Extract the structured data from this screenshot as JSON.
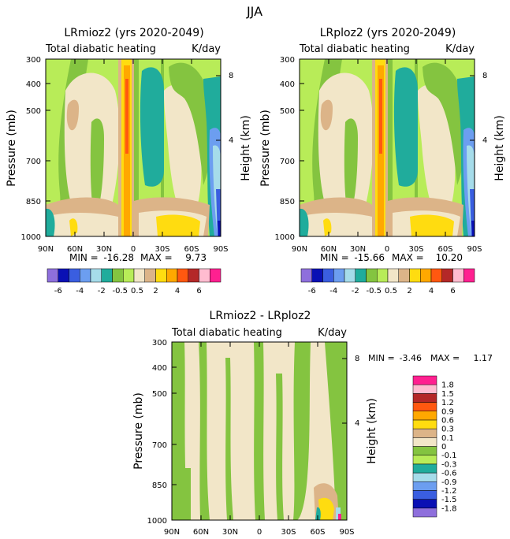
{
  "figure": {
    "title": "JJA"
  },
  "chart_data": [
    {
      "type": "heatmap",
      "title": "LRmioz2 (yrs 2020-2049)",
      "subtitle_left": "Total diabatic heating",
      "subtitle_right": "K/day",
      "ylabel": "Pressure (mb)",
      "ylabel_right": "Height (km)",
      "x_ticks": [
        "90N",
        "60N",
        "30N",
        "0",
        "30S",
        "60S",
        "90S"
      ],
      "y_ticks": [
        "300",
        "400",
        "500",
        "700",
        "850",
        "1000"
      ],
      "y_right_ticks": [
        "8",
        "4"
      ],
      "stats": {
        "min_label": "MIN =",
        "min": "-16.28",
        "max_label": "MAX =",
        "max": "9.73"
      }
    },
    {
      "type": "heatmap",
      "title": "LRploz2 (yrs 2020-2049)",
      "subtitle_left": "Total diabatic heating",
      "subtitle_right": "K/day",
      "ylabel": "Pressure (mb)",
      "ylabel_right": "Height (km)",
      "x_ticks": [
        "90N",
        "60N",
        "30N",
        "0",
        "30S",
        "60S",
        "90S"
      ],
      "y_ticks": [
        "300",
        "400",
        "500",
        "700",
        "850",
        "1000"
      ],
      "y_right_ticks": [
        "8",
        "4"
      ],
      "stats": {
        "min_label": "MIN =",
        "min": "-15.66",
        "max_label": "MAX =",
        "max": "10.20"
      }
    },
    {
      "type": "heatmap",
      "title": "LRmioz2 - LRploz2",
      "subtitle_left": "Total diabatic heating",
      "subtitle_right": "K/day",
      "ylabel": "Pressure (mb)",
      "ylabel_right": "Height (km)",
      "x_ticks": [
        "90N",
        "60N",
        "30N",
        "0",
        "30S",
        "60S",
        "90S"
      ],
      "y_ticks": [
        "300",
        "400",
        "500",
        "700",
        "850",
        "1000"
      ],
      "y_right_ticks": [
        "8",
        "4"
      ],
      "stats": {
        "min_label": "MIN =",
        "min": "-3.46",
        "max_label": "MAX =",
        "max": "1.17"
      }
    }
  ],
  "colorbar_top": {
    "colors": [
      "#8e6fdc",
      "#0a10b4",
      "#3a5ee0",
      "#6c9ef0",
      "#a6dcea",
      "#20ac9c",
      "#84c440",
      "#b8ec58",
      "#f2e6c8",
      "#dcb488",
      "#ffdc10",
      "#ffa800",
      "#ff5810",
      "#b42828",
      "#ffbcd0",
      "#ff2090"
    ],
    "labels": [
      "-6",
      "-4",
      "-2",
      "-0.5",
      "0.5",
      "2",
      "4",
      "6"
    ]
  },
  "colorbar_diff": {
    "colors": [
      "#8e6fdc",
      "#0a10b4",
      "#3a5ee0",
      "#6c9ef0",
      "#a6dcea",
      "#20ac9c",
      "#b8ec58",
      "#84c440",
      "#f2e6c8",
      "#dcb488",
      "#ffdc10",
      "#ffa800",
      "#ff5810",
      "#b42828",
      "#ffbcd0",
      "#ff2090"
    ],
    "labels": [
      "1.8",
      "1.5",
      "1.2",
      "0.9",
      "0.6",
      "0.3",
      "0.1",
      "0",
      "-0.1",
      "-0.3",
      "-0.6",
      "-0.9",
      "-1.2",
      "-1.5",
      "-1.8"
    ]
  }
}
